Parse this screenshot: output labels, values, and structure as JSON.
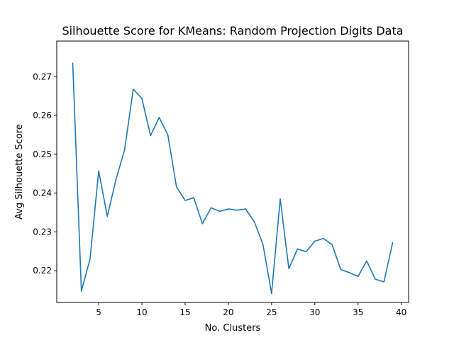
{
  "chart_data": {
    "type": "line",
    "title": "Silhouette Score for KMeans: Random Projection Digits Data",
    "xlabel": "No. Clusters",
    "ylabel": "Avg Silhouette Score",
    "xlim": [
      0.15,
      40.85
    ],
    "ylim": [
      0.2118,
      0.2792
    ],
    "xticks": [
      5,
      10,
      15,
      20,
      25,
      30,
      35,
      40
    ],
    "yticks": [
      0.22,
      0.23,
      0.24,
      0.25,
      0.26,
      0.27
    ],
    "grid": false,
    "series": [
      {
        "color": "#1f77b4",
        "x": [
          2,
          3,
          4,
          5,
          6,
          7,
          8,
          9,
          10,
          11,
          12,
          13,
          14,
          15,
          16,
          17,
          18,
          19,
          20,
          21,
          22,
          23,
          24,
          25,
          26,
          27,
          28,
          29,
          30,
          31,
          32,
          33,
          34,
          35,
          36,
          37,
          38,
          39
        ],
        "y": [
          0.2735,
          0.2147,
          0.223,
          0.2457,
          0.234,
          0.2435,
          0.2512,
          0.2668,
          0.2644,
          0.2548,
          0.2595,
          0.255,
          0.2416,
          0.2381,
          0.2388,
          0.2321,
          0.2362,
          0.2353,
          0.2359,
          0.2356,
          0.2359,
          0.2326,
          0.2268,
          0.2141,
          0.2385,
          0.2205,
          0.2256,
          0.2249,
          0.2276,
          0.2283,
          0.2267,
          0.2203,
          0.2195,
          0.2185,
          0.2225,
          0.2178,
          0.2171,
          0.2272
        ]
      }
    ]
  }
}
